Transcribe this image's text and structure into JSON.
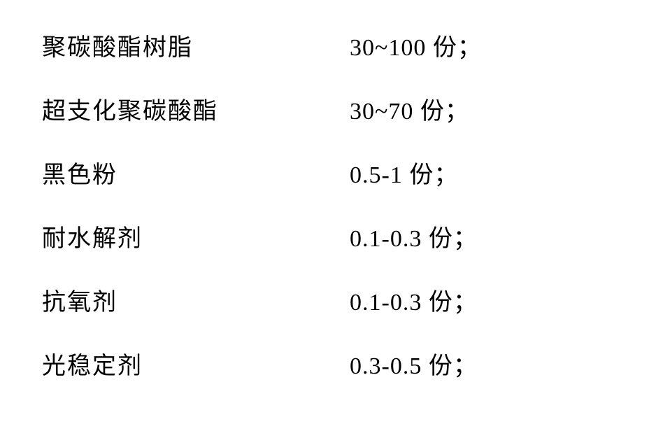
{
  "rows": [
    {
      "label": "聚碳酸酯树脂",
      "value": "30~100 份；"
    },
    {
      "label": "超支化聚碳酸酯",
      "value": "30~70 份；"
    },
    {
      "label": "黑色粉",
      "value": "0.5-1 份；"
    },
    {
      "label": "耐水解剂",
      "value": "0.1-0.3 份；"
    },
    {
      "label": "抗氧剂",
      "value": "0.1-0.3 份；"
    },
    {
      "label": "光稳定剂",
      "value": "0.3-0.5 份；"
    }
  ],
  "style": {
    "background_color": "#ffffff",
    "text_color": "#000000",
    "font_family": "SimSun",
    "label_fontsize": 34,
    "value_fontsize": 34,
    "row_gap": 42,
    "label_width": 440
  }
}
